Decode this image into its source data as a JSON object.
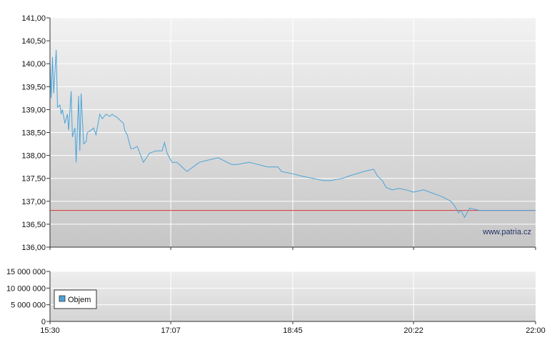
{
  "chart_data": [
    {
      "type": "line",
      "panel": "price",
      "ylim": [
        136.0,
        141.0
      ],
      "y_ticks": [
        "141,00",
        "140,50",
        "140,00",
        "139,50",
        "139,00",
        "138,50",
        "138,00",
        "137,50",
        "137,00",
        "136,50",
        "136,00"
      ],
      "x_ticks": [
        "15:30",
        "17:07",
        "18:45",
        "20:22",
        "22:00"
      ],
      "xlim": [
        "15:30",
        "22:00"
      ],
      "reference_line": {
        "value": 136.8,
        "color": "#dd3333"
      },
      "line_color": "#4aa3d8",
      "grid": true,
      "watermark": "www.patria.cz",
      "x": [
        "15:30",
        "15:31",
        "15:32",
        "15:33",
        "15:35",
        "15:36",
        "15:38",
        "15:39",
        "15:40",
        "15:42",
        "15:44",
        "15:45",
        "15:47",
        "15:48",
        "15:50",
        "15:51",
        "15:53",
        "15:54",
        "15:55",
        "15:57",
        "15:59",
        "16:00",
        "16:03",
        "16:05",
        "16:07",
        "16:10",
        "16:12",
        "16:15",
        "16:18",
        "16:20",
        "16:22",
        "16:23",
        "16:25",
        "16:27",
        "16:29",
        "16:30",
        "16:32",
        "16:35",
        "16:37",
        "16:40",
        "16:45",
        "16:50",
        "16:55",
        "17:00",
        "17:02",
        "17:04",
        "17:08",
        "17:12",
        "17:20",
        "17:30",
        "17:45",
        "17:56",
        "18:00",
        "18:10",
        "18:25",
        "18:33",
        "18:36",
        "18:45",
        "18:52",
        "19:10",
        "19:15",
        "19:25",
        "19:30",
        "19:42",
        "19:50",
        "19:53",
        "19:57",
        "20:00",
        "20:05",
        "20:10",
        "20:16",
        "20:22",
        "20:30",
        "20:40",
        "20:45",
        "20:52",
        "20:55",
        "20:58",
        "21:00",
        "21:03",
        "21:07",
        "21:15",
        "21:21",
        "21:28",
        "21:33",
        "21:40",
        "21:45",
        "21:50",
        "21:55",
        "21:57",
        "21:59",
        "22:00"
      ],
      "y": [
        140.05,
        139.25,
        140.15,
        139.35,
        140.3,
        139.05,
        139.1,
        138.9,
        139.0,
        138.7,
        138.9,
        138.55,
        139.4,
        138.4,
        138.6,
        137.85,
        139.3,
        138.1,
        139.35,
        138.25,
        138.3,
        138.5,
        138.55,
        138.6,
        138.45,
        138.9,
        138.8,
        138.9,
        138.85,
        138.9,
        138.85,
        138.85,
        138.8,
        138.75,
        138.7,
        138.55,
        138.45,
        138.15,
        138.15,
        138.2,
        137.85,
        138.05,
        138.1,
        138.1,
        138.28,
        138.05,
        137.85,
        137.85,
        137.65,
        137.85,
        137.95,
        137.8,
        137.8,
        137.85,
        137.75,
        137.75,
        137.65,
        137.6,
        137.55,
        137.45,
        137.45,
        137.5,
        137.55,
        137.65,
        137.7,
        137.55,
        137.45,
        137.3,
        137.25,
        137.28,
        137.25,
        137.2,
        137.25,
        137.15,
        137.1,
        137.0,
        136.9,
        136.75,
        136.8,
        136.65,
        136.85,
        136.8,
        136.8,
        136.8,
        136.8,
        136.8,
        136.8,
        136.8,
        136.8,
        136.8,
        136.8,
        136.8
      ]
    },
    {
      "type": "bar",
      "panel": "volume",
      "ylim": [
        0,
        15000000
      ],
      "y_ticks": [
        "15 000 000",
        "10 000 000",
        "5 000 000",
        "0"
      ],
      "legend": {
        "label": "Objem",
        "position": "bottom-left",
        "color": "#4aa3d8"
      },
      "series": [
        {
          "name": "Objem",
          "values": [
            0,
            0,
            0,
            0,
            0,
            0,
            0,
            0,
            0,
            0,
            0,
            0
          ]
        }
      ]
    }
  ]
}
